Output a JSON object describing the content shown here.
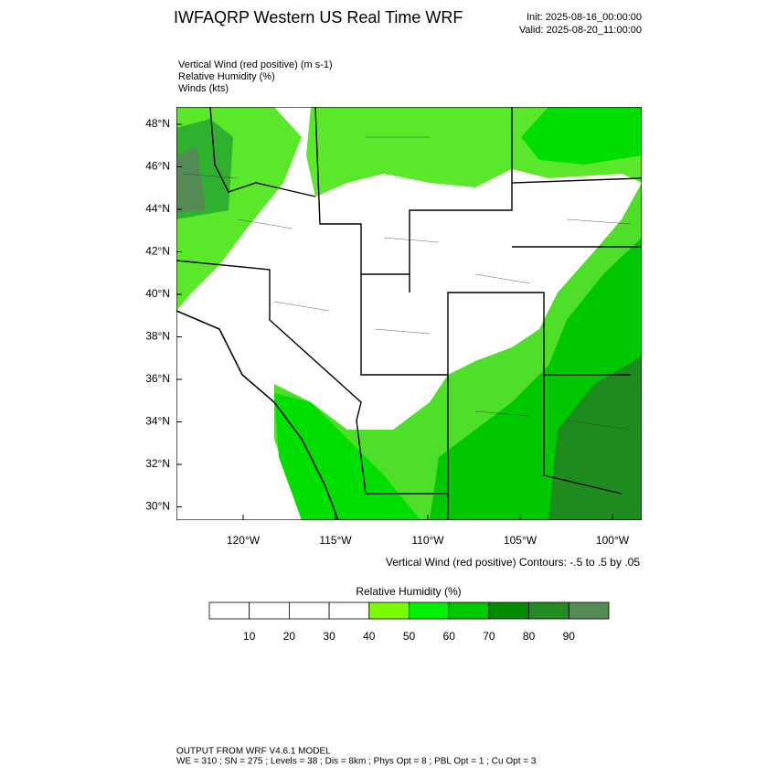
{
  "header": {
    "title": "IWFAQRP Western US Real Time WRF",
    "init": "Init: 2025-08-16_00:00:00",
    "valid": "Valid: 2025-08-20_11:00:00"
  },
  "fields": [
    "Vertical Wind (red positive)   (m s-1)",
    "Relative Humidity   (%)",
    "Winds   (kts)"
  ],
  "map": {
    "lat_labels": [
      "48°N",
      "46°N",
      "44°N",
      "42°N",
      "40°N",
      "38°N",
      "36°N",
      "34°N",
      "32°N",
      "30°N"
    ],
    "lon_labels": [
      "120°W",
      "115°W",
      "110°W",
      "105°W",
      "100°W"
    ],
    "contour_note": "Vertical Wind (red positive) Contours: -.5 to .5 by .05"
  },
  "colorbar": {
    "title": "Relative Humidity  (%)",
    "labels": [
      "10",
      "20",
      "30",
      "40",
      "50",
      "60",
      "70",
      "80",
      "90"
    ],
    "colors": [
      "#ffffff",
      "#ffffff",
      "#ffffff",
      "#ffffff",
      "#7cfc00",
      "#00f000",
      "#00c800",
      "#008b00",
      "#228b22",
      "#548b54"
    ]
  },
  "footer": {
    "line1": "OUTPUT FROM WRF V4.6.1 MODEL",
    "line2": "WE = 310 ; SN = 275 ; Levels = 38 ; Dis = 8km ; Phys Opt = 8 ; PBL Opt = 1 ; Cu Opt = 3"
  }
}
